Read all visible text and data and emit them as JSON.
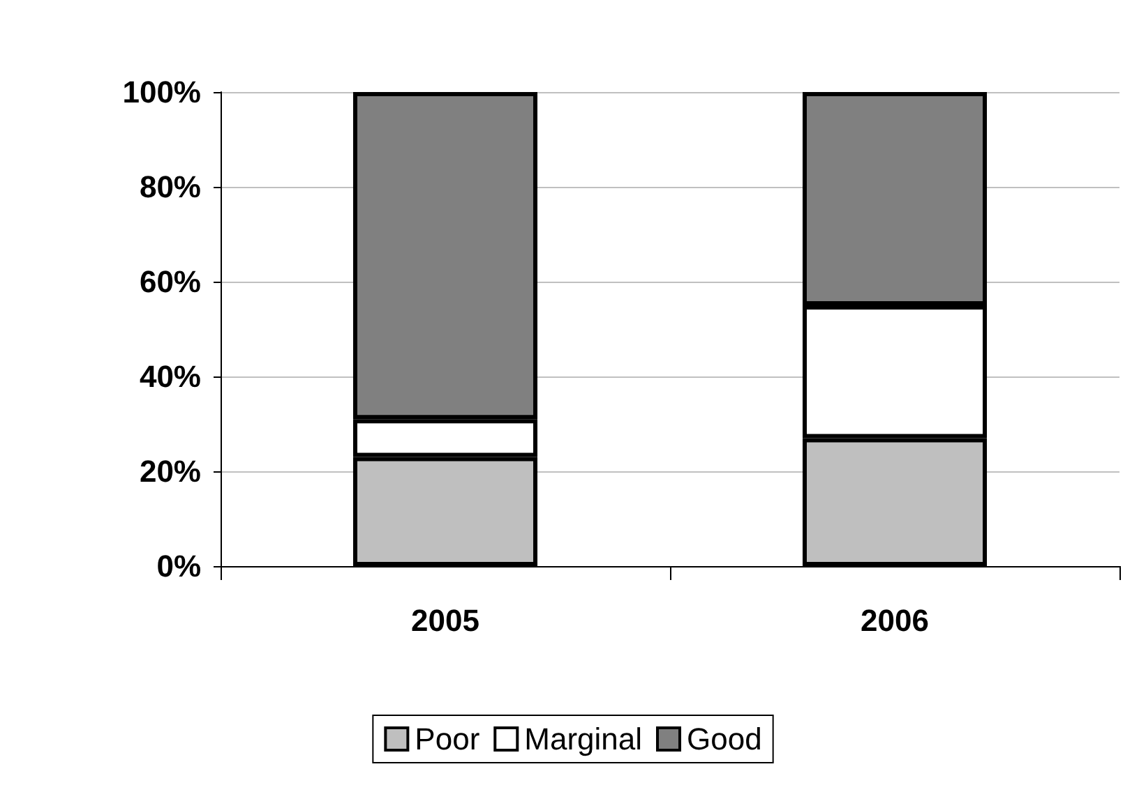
{
  "chart_data": {
    "type": "bar",
    "stacked": true,
    "categories": [
      "2005",
      "2006"
    ],
    "series": [
      {
        "name": "Poor",
        "color": "#bfbfbf",
        "values": [
          23,
          27
        ]
      },
      {
        "name": "Marginal",
        "color": "#ffffff",
        "values": [
          8,
          28
        ]
      },
      {
        "name": "Good",
        "color": "#808080",
        "values": [
          69,
          45
        ]
      }
    ],
    "ylim": [
      0,
      100
    ],
    "yticks": [
      {
        "value": 0,
        "label": "0%"
      },
      {
        "value": 20,
        "label": "20%"
      },
      {
        "value": 40,
        "label": "40%"
      },
      {
        "value": 60,
        "label": "60%"
      },
      {
        "value": 80,
        "label": "80%"
      },
      {
        "value": 100,
        "label": "100%"
      }
    ],
    "grid": "y",
    "legend": "bottom"
  }
}
